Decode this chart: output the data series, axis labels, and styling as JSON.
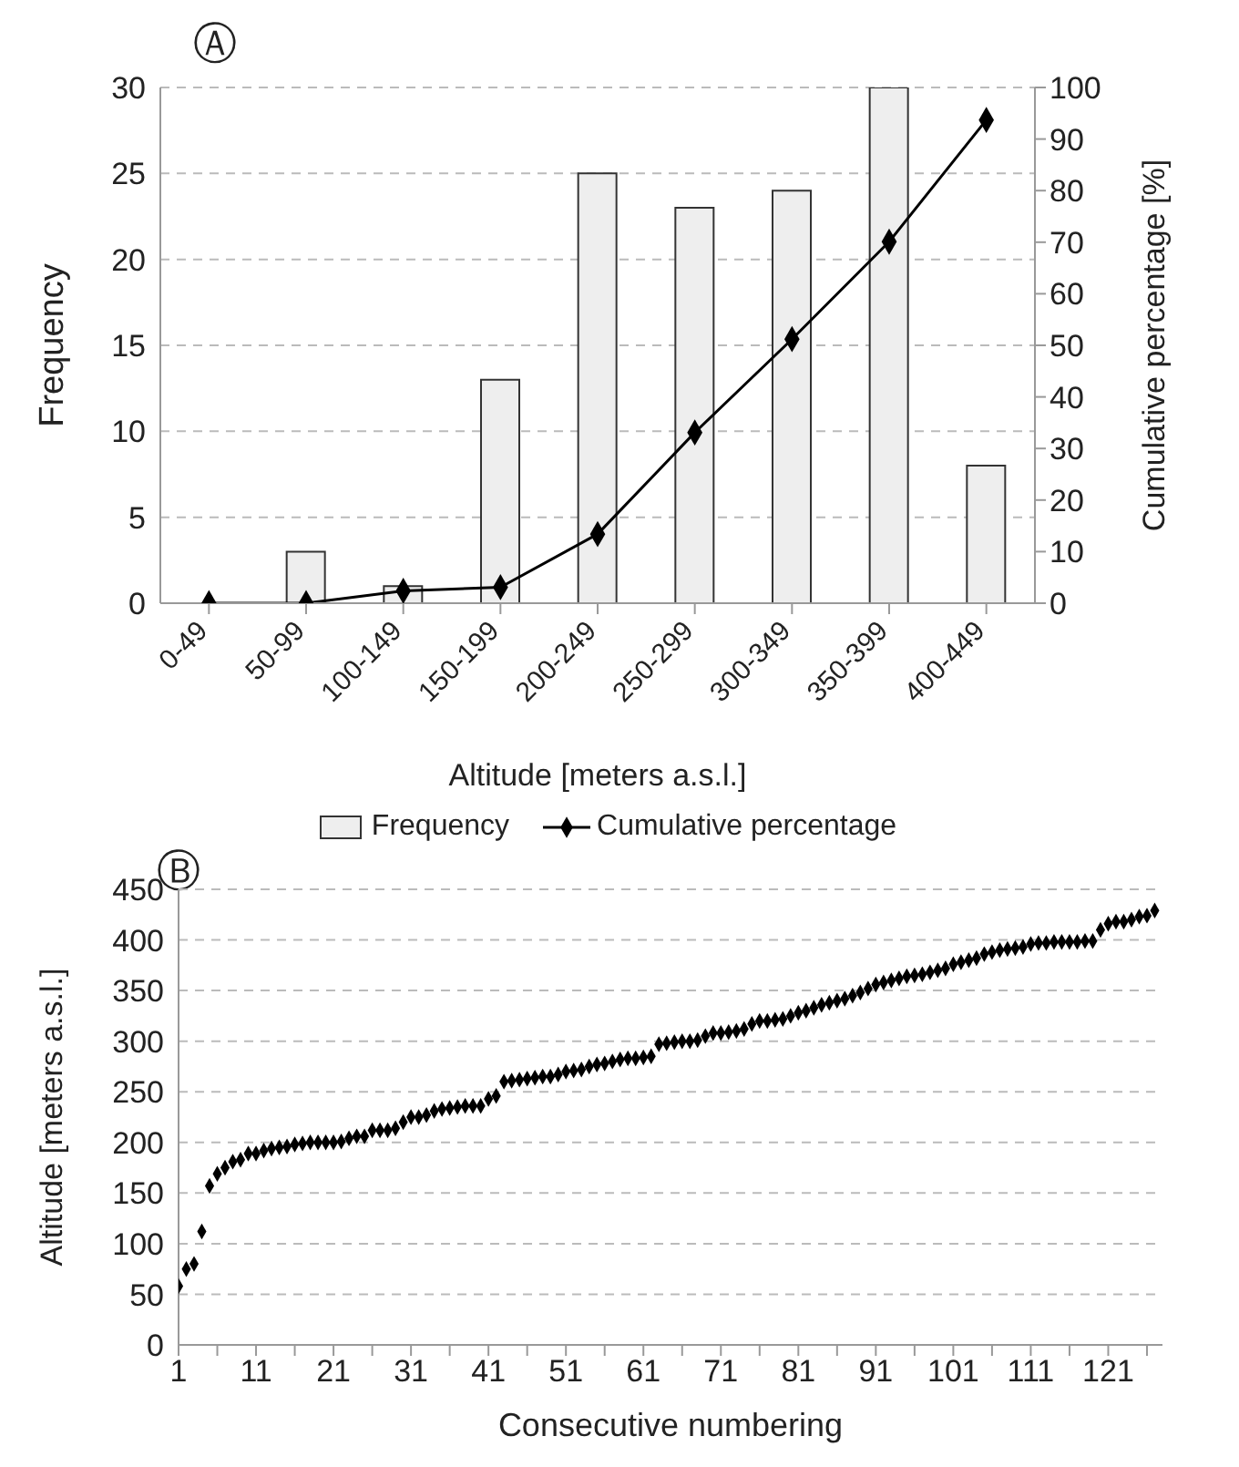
{
  "chart_data": [
    {
      "type": "bar",
      "annotations": [
        "Ⓐ"
      ],
      "xlabel": "Altitude  [meters a.s.l.]",
      "ylabel": "Frequency",
      "y2label": "Cumulative percentage [%]",
      "categories": [
        "0-49",
        "50-99",
        "100-149",
        "150-199",
        "200-249",
        "250-299",
        "300-349",
        "350-399",
        "400-449"
      ],
      "series": [
        {
          "name": "Frequency",
          "type": "bar",
          "color": "#eeeeee",
          "values": [
            0,
            3,
            1,
            13,
            25,
            23,
            24,
            30,
            8
          ]
        },
        {
          "name": "Cumulative percentage",
          "type": "line",
          "axis": "y2",
          "color": "#000000",
          "marker": "diamond",
          "values": [
            0,
            0,
            2.4,
            3.1,
            13.4,
            33.1,
            51.2,
            70.1,
            93.7
          ]
        }
      ],
      "ylim": [
        0,
        30
      ],
      "yticks": [
        0,
        5,
        10,
        15,
        20,
        25,
        30
      ],
      "y2lim": [
        0,
        100
      ],
      "y2ticks": [
        0,
        10,
        20,
        30,
        40,
        50,
        60,
        70,
        80,
        90,
        100
      ],
      "grid": "y",
      "legend": "bottom"
    },
    {
      "type": "scatter",
      "annotations": [
        "Ⓑ"
      ],
      "xlabel": "Consecutive numbering",
      "ylabel": "Altitude [meters a.s.l.]",
      "marker": "diamond",
      "color": "#000000",
      "x": [
        1,
        2,
        3,
        4,
        5,
        6,
        7,
        8,
        9,
        10,
        11,
        12,
        13,
        14,
        15,
        16,
        17,
        18,
        19,
        20,
        21,
        22,
        23,
        24,
        25,
        26,
        27,
        28,
        29,
        30,
        31,
        32,
        33,
        34,
        35,
        36,
        37,
        38,
        39,
        40,
        41,
        42,
        43,
        44,
        45,
        46,
        47,
        48,
        49,
        50,
        51,
        52,
        53,
        54,
        55,
        56,
        57,
        58,
        59,
        60,
        61,
        62,
        63,
        64,
        65,
        66,
        67,
        68,
        69,
        70,
        71,
        72,
        73,
        74,
        75,
        76,
        77,
        78,
        79,
        80,
        81,
        82,
        83,
        84,
        85,
        86,
        87,
        88,
        89,
        90,
        91,
        92,
        93,
        94,
        95,
        96,
        97,
        98,
        99,
        100,
        101,
        102,
        103,
        104,
        105,
        106,
        107,
        108,
        109,
        110,
        111,
        112,
        113,
        114,
        115,
        116,
        117,
        118,
        119,
        120,
        121,
        122,
        123,
        124,
        125,
        126,
        127
      ],
      "values": [
        58,
        75,
        80,
        112,
        157,
        169,
        175,
        181,
        183,
        189,
        189,
        192,
        194,
        195,
        196,
        198,
        199,
        200,
        200,
        200,
        200,
        201,
        204,
        206,
        206,
        212,
        212,
        212,
        214,
        220,
        225,
        225,
        227,
        231,
        233,
        234,
        235,
        236,
        236,
        236,
        243,
        246,
        260,
        261,
        262,
        263,
        264,
        265,
        265,
        267,
        270,
        271,
        272,
        275,
        277,
        278,
        280,
        282,
        283,
        283,
        284,
        285,
        297,
        298,
        299,
        300,
        300,
        301,
        305,
        308,
        308,
        309,
        310,
        312,
        317,
        320,
        320,
        321,
        322,
        325,
        328,
        330,
        333,
        336,
        338,
        340,
        342,
        345,
        348,
        352,
        356,
        358,
        360,
        362,
        364,
        365,
        366,
        368,
        370,
        372,
        376,
        378,
        380,
        382,
        386,
        388,
        390,
        391,
        392,
        393,
        396,
        397,
        397,
        398,
        398,
        398,
        398,
        399,
        399,
        410,
        416,
        418,
        418,
        420,
        423,
        424,
        429
      ],
      "xlim": [
        1,
        128
      ],
      "xticks": [
        1,
        {
          "value": 6,
          "label": null
        },
        11,
        {
          "value": 16,
          "label": null
        },
        21,
        {
          "value": 26,
          "label": null
        },
        31,
        {
          "value": 36,
          "label": null
        },
        41,
        {
          "value": 46,
          "label": null
        },
        51,
        {
          "value": 56,
          "label": null
        },
        61,
        {
          "value": 66,
          "label": null
        },
        71,
        {
          "value": 76,
          "label": null
        },
        81,
        {
          "value": 86,
          "label": null
        },
        91,
        {
          "value": 96,
          "label": null
        },
        101,
        {
          "value": 106,
          "label": null
        },
        111,
        {
          "value": 116,
          "label": null
        },
        121,
        {
          "value": 126,
          "label": null
        }
      ],
      "ylim": [
        0,
        450
      ],
      "yticks": [
        0,
        50,
        100,
        150,
        200,
        250,
        300,
        350,
        400,
        450
      ],
      "grid": "y"
    }
  ]
}
